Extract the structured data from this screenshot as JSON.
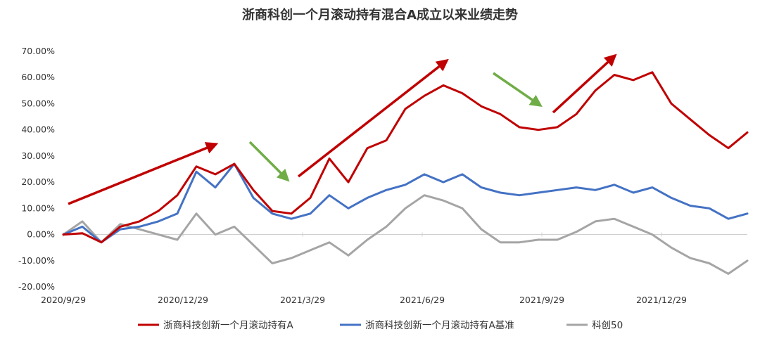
{
  "chart_data": {
    "type": "line",
    "title": "浙商科创一个月滚动持有混合A成立以来业绩走势",
    "xlabel": "",
    "ylabel": "",
    "ylim": [
      -20,
      70
    ],
    "ytick_labels": [
      "-20.00%",
      "-10.00%",
      "0.00%",
      "10.00%",
      "20.00%",
      "30.00%",
      "40.00%",
      "50.00%",
      "60.00%",
      "70.00%"
    ],
    "xtick_labels": [
      "2020/9/29",
      "2020/12/29",
      "2021/3/29",
      "2021/6/29",
      "2021/9/29",
      "2021/12/29"
    ],
    "x": [
      "2020-09-29",
      "2020-10-13",
      "2020-10-27",
      "2020-11-10",
      "2020-11-24",
      "2020-12-08",
      "2020-12-22",
      "2021-01-05",
      "2021-01-19",
      "2021-02-02",
      "2021-02-16",
      "2021-03-02",
      "2021-03-16",
      "2021-03-30",
      "2021-04-13",
      "2021-04-27",
      "2021-05-11",
      "2021-05-25",
      "2021-06-08",
      "2021-06-22",
      "2021-07-06",
      "2021-07-20",
      "2021-08-03",
      "2021-08-17",
      "2021-08-31",
      "2021-09-14",
      "2021-09-28",
      "2021-10-12",
      "2021-10-26",
      "2021-11-09",
      "2021-11-23",
      "2021-12-07",
      "2021-12-21",
      "2022-01-04",
      "2022-01-18",
      "2022-02-01",
      "2022-02-15"
    ],
    "series": [
      {
        "name": "浙商科技创新一个月滚动持有A",
        "color": "#C00000",
        "values": [
          0,
          0.5,
          -3,
          3,
          5,
          9,
          15,
          26,
          23,
          27,
          17,
          9,
          8,
          14,
          29,
          20,
          33,
          36,
          48,
          53,
          57,
          54,
          49,
          46,
          41,
          40,
          41,
          46,
          55,
          61,
          59,
          62,
          50,
          44,
          38,
          33,
          39
        ]
      },
      {
        "name": "浙商科技创新一个月滚动持有A基准",
        "color": "#4472C4",
        "values": [
          0,
          3,
          -3,
          2,
          3,
          5,
          8,
          24,
          18,
          27,
          14,
          8,
          6,
          8,
          15,
          10,
          14,
          17,
          19,
          23,
          20,
          23,
          18,
          16,
          15,
          16,
          17,
          18,
          17,
          19,
          16,
          18,
          14,
          11,
          10,
          6,
          8
        ]
      },
      {
        "name": "科创50",
        "color": "#A5A5A5",
        "values": [
          0,
          5,
          -3,
          4,
          2,
          0,
          -2,
          8,
          0,
          3,
          -4,
          -11,
          -9,
          -6,
          -3,
          -8,
          -2,
          3,
          10,
          15,
          13,
          10,
          2,
          -3,
          -3,
          -2,
          -2,
          1,
          5,
          6,
          3,
          0,
          -5,
          -9,
          -11,
          -15,
          -10
        ]
      }
    ],
    "legend_position": "bottom",
    "grid": false
  }
}
